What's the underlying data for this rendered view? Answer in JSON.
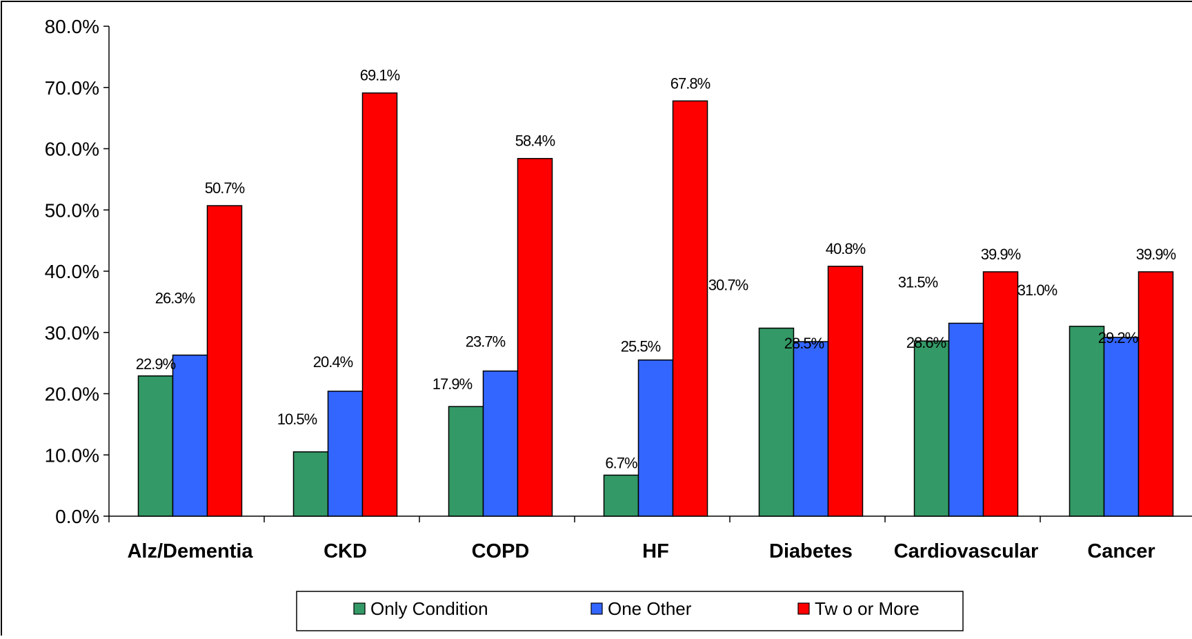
{
  "chart_data": {
    "type": "bar",
    "title": "",
    "xlabel": "",
    "ylabel": "",
    "ylim": [
      0,
      80
    ],
    "y_tick_labels": [
      "0.0%",
      "10.0%",
      "20.0%",
      "30.0%",
      "40.0%",
      "50.0%",
      "60.0%",
      "70.0%",
      "80.0%"
    ],
    "categories": [
      "Alz/Dementia",
      "CKD",
      "COPD",
      "HF",
      "Diabetes",
      "Cardiovascular",
      "Cancer"
    ],
    "series": [
      {
        "name": "Only Condition",
        "color": "#339966",
        "values": [
          22.9,
          10.5,
          17.9,
          6.7,
          30.7,
          28.6,
          31.0
        ],
        "labels": [
          "22.9%",
          "10.5%",
          "17.9%",
          "6.7%",
          "30.7%",
          "28.6%",
          "31.0%"
        ]
      },
      {
        "name": "One Other",
        "color": "#3366ff",
        "values": [
          26.3,
          20.4,
          23.7,
          25.5,
          28.5,
          31.5,
          29.2
        ],
        "labels": [
          "26.3%",
          "20.4%",
          "23.7%",
          "25.5%",
          "28.5%",
          "31.5%",
          "29.2%"
        ]
      },
      {
        "name": "Tw o or More",
        "color": "#ff0000",
        "values": [
          50.7,
          69.1,
          58.4,
          67.8,
          40.8,
          39.9,
          39.9
        ],
        "labels": [
          "50.7%",
          "69.1%",
          "58.4%",
          "67.8%",
          "40.8%",
          "39.9%",
          "39.9%"
        ]
      }
    ],
    "grid": false,
    "legend_position": "bottom"
  }
}
